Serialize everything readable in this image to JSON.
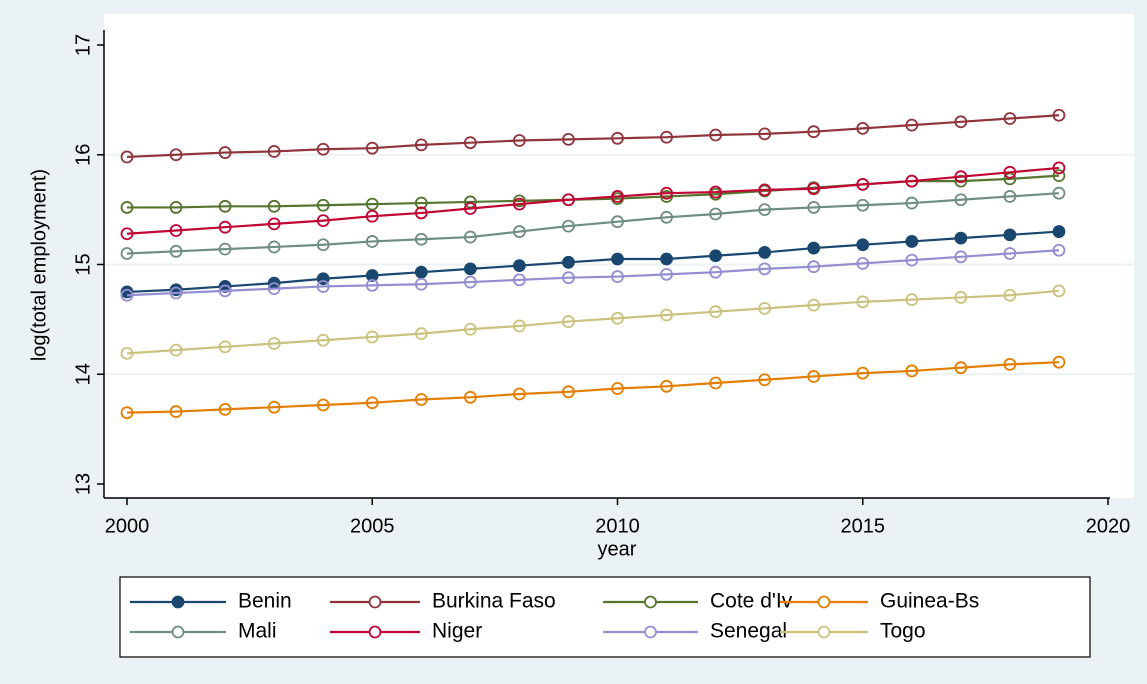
{
  "chart_data": {
    "type": "line",
    "xlabel": "year",
    "ylabel": "log(total employment)",
    "x": [
      2000,
      2001,
      2002,
      2003,
      2004,
      2005,
      2006,
      2007,
      2008,
      2009,
      2010,
      2011,
      2012,
      2013,
      2014,
      2015,
      2016,
      2017,
      2018,
      2019
    ],
    "series": [
      {
        "name": "Benin",
        "color": "#1a476f",
        "marker": "filled",
        "values": [
          14.75,
          14.77,
          14.8,
          14.83,
          14.87,
          14.9,
          14.93,
          14.96,
          14.99,
          15.02,
          15.05,
          15.05,
          15.08,
          15.11,
          15.15,
          15.18,
          15.21,
          15.24,
          15.27,
          15.3
        ]
      },
      {
        "name": "Burkina Faso",
        "color": "#90353b",
        "marker": "hollow",
        "values": [
          15.98,
          16.0,
          16.02,
          16.03,
          16.05,
          16.06,
          16.09,
          16.11,
          16.13,
          16.14,
          16.15,
          16.16,
          16.18,
          16.19,
          16.21,
          16.24,
          16.27,
          16.3,
          16.33,
          16.36
        ]
      },
      {
        "name": "Cote d'Iv",
        "color": "#55752f",
        "marker": "hollow",
        "values": [
          15.52,
          15.52,
          15.53,
          15.53,
          15.54,
          15.55,
          15.56,
          15.57,
          15.58,
          15.59,
          15.6,
          15.62,
          15.64,
          15.67,
          15.7,
          15.73,
          15.76,
          15.76,
          15.78,
          15.81
        ]
      },
      {
        "name": "Guinea-Bs",
        "color": "#e37e00",
        "marker": "hollow",
        "values": [
          13.65,
          13.66,
          13.68,
          13.7,
          13.72,
          13.74,
          13.77,
          13.79,
          13.82,
          13.84,
          13.87,
          13.89,
          13.92,
          13.95,
          13.98,
          14.01,
          14.03,
          14.06,
          14.09,
          14.11
        ]
      },
      {
        "name": "Mali",
        "color": "#6e8e84",
        "marker": "hollow",
        "values": [
          15.1,
          15.12,
          15.14,
          15.16,
          15.18,
          15.21,
          15.23,
          15.25,
          15.3,
          15.35,
          15.39,
          15.43,
          15.46,
          15.5,
          15.52,
          15.54,
          15.56,
          15.59,
          15.62,
          15.65
        ]
      },
      {
        "name": "Niger",
        "color": "#c10534",
        "marker": "hollow",
        "values": [
          15.28,
          15.31,
          15.34,
          15.37,
          15.4,
          15.44,
          15.47,
          15.51,
          15.55,
          15.59,
          15.62,
          15.65,
          15.66,
          15.68,
          15.69,
          15.73,
          15.76,
          15.8,
          15.84,
          15.88
        ]
      },
      {
        "name": "Senegal",
        "color": "#938dd2",
        "marker": "hollow",
        "values": [
          14.72,
          14.74,
          14.76,
          14.78,
          14.8,
          14.81,
          14.82,
          14.84,
          14.86,
          14.88,
          14.89,
          14.91,
          14.93,
          14.96,
          14.98,
          15.01,
          15.04,
          15.07,
          15.1,
          15.13
        ]
      },
      {
        "name": "Togo",
        "color": "#cac27e",
        "marker": "hollow",
        "values": [
          14.19,
          14.22,
          14.25,
          14.28,
          14.31,
          14.34,
          14.37,
          14.41,
          14.44,
          14.48,
          14.51,
          14.54,
          14.57,
          14.6,
          14.63,
          14.66,
          14.68,
          14.7,
          14.72,
          14.76
        ]
      }
    ],
    "xlim": [
      2000,
      2020
    ],
    "xticks": [
      2000,
      2005,
      2010,
      2015,
      2020
    ],
    "ylim": [
      13,
      17
    ],
    "yticks": [
      13,
      14,
      15,
      16,
      17
    ],
    "grid": true,
    "legend": "bottom"
  }
}
